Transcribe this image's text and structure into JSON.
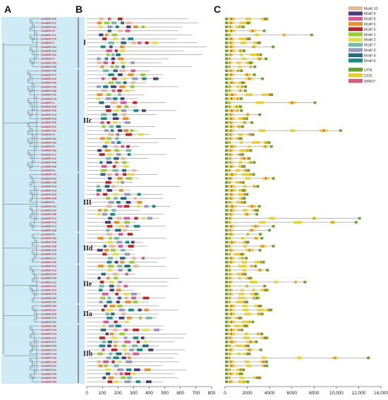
{
  "panels": {
    "a": "A",
    "b": "B",
    "c": "C"
  },
  "genes": [
    "DoWRKY66",
    "DoWRKY47",
    "DoWRKY62",
    "DoWRKY3",
    "DoWRKY11",
    "DoWRKY70",
    "DoWRKY7",
    "DoWRKY34",
    "DoWRKY20",
    "DoWRKY23",
    "DoWRKY2",
    "DoWRKY65",
    "DoWRKY58",
    "DoWRKY90",
    "DoWRKY77",
    "DoWRKY40",
    "DoWRKY35",
    "DoWRKY30",
    "DoWRKY88",
    "DoWRKY41",
    "DoWRKY78",
    "DoWRKY1",
    "DoWRKY39",
    "DoWRKY36",
    "DoWRKY13",
    "DoWRKY53",
    "DoWRKY56",
    "DoWRKY21",
    "DoWRKY52",
    "DoWRKY4",
    "DoWRKY81",
    "DoWRKY42",
    "DoWRKY9",
    "DoWRKY69",
    "DoWRKY71",
    "DoWRKY22",
    "DoWRKY46",
    "DoWRKY60",
    "DoWRKY8",
    "DoWRKY75",
    "DoWRKY84",
    "DoWRKY45",
    "DoWRKY15",
    "DoWRKY63",
    "DoWRKY18",
    "DoWRKY89",
    "DoWRKY6",
    "DoWRKY64",
    "DoWRKY91",
    "DoWRKY85",
    "DoWRKY72",
    "DoWRKY73",
    "DoWRKY74",
    "DoWRKY86",
    "DoWRKY5",
    "DoWRKY43",
    "DoWRKY26",
    "DoWRKY55",
    "DoWRKY28",
    "DoWRKY10",
    "DoWRKY17",
    "DoWRKY38",
    "DoWRKY19",
    "DoWRKY32",
    "DoWRKY16",
    "DoWRKY80",
    "DoWRKY12",
    "DoWRKY31",
    "DoWRKY51",
    "DoWRKY76",
    "DoWRKY83",
    "DoWRKY57",
    "DoWRKY94",
    "DoWRKY37",
    "DoWRKY59",
    "DoWRKY79",
    "DoWRKY87",
    "DoWRKY82",
    "DoWRKY29",
    "DoWRKY24",
    "DoWRKY27",
    "DoWRKY27",
    "DoWRKY50",
    "DoWRKY14",
    "DoWRKY44",
    "DoWRKY32",
    "DoWRKY48",
    "DoWRKY67",
    "DoWRKY61",
    "DoWRKY54",
    "DoWRKY33",
    "DoWRKY93"
  ],
  "groups": [
    {
      "label": "I",
      "start": 0,
      "end": 12
    },
    {
      "label": "IIc",
      "start": 13,
      "end": 38
    },
    {
      "label": "III",
      "start": 39,
      "end": 53
    },
    {
      "label": "IId",
      "start": 54,
      "end": 61
    },
    {
      "label": "IIe",
      "start": 62,
      "end": 71
    },
    {
      "label": "IIa",
      "start": 72,
      "end": 76
    },
    {
      "label": "IIb",
      "start": 77,
      "end": 91
    }
  ],
  "axis_b": {
    "ticks": [
      "0",
      "100",
      "200",
      "300",
      "400",
      "500",
      "600",
      "700",
      "800"
    ],
    "max": 800
  },
  "axis_c": {
    "ticks": [
      "0",
      "2000",
      "4000",
      "6000",
      "8000",
      "10,000",
      "12,000",
      "14,000"
    ],
    "max": 14000
  },
  "motif_legend": [
    {
      "label": "Motif 10",
      "color": "#e8b89a"
    },
    {
      "label": "Motif 9",
      "color": "#4a3d7a"
    },
    {
      "label": "Motif 8",
      "color": "#d45a9a"
    },
    {
      "label": "Motif 6",
      "color": "#e8902a"
    },
    {
      "label": "Motif 5",
      "color": "#b8282a"
    },
    {
      "label": "Motif 1",
      "color": "#9acb3a"
    },
    {
      "label": "Motif 2",
      "color": "#e0e050"
    },
    {
      "label": "Motif 7",
      "color": "#7ab8a8"
    },
    {
      "label": "Motif 3",
      "color": "#9a9ac0"
    },
    {
      "label": "Motif 4",
      "color": "#2a6a78"
    },
    {
      "label": "Motif 6",
      "color": "#1a8a8a"
    }
  ],
  "structure_legend": [
    {
      "label": "UTR",
      "color": "#6aa03a"
    },
    {
      "label": "CDS",
      "color": "#e8d030"
    },
    {
      "label": "WRKY",
      "color": "#d0607a"
    }
  ]
}
